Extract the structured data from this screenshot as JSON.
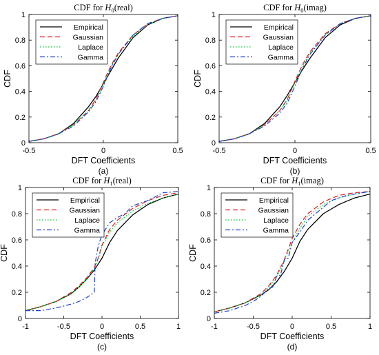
{
  "chart_data": [
    {
      "id": "a",
      "type": "line",
      "title": "CDF for H0(real)",
      "title_parts": {
        "prefix": "CDF for ",
        "symbol": "H",
        "subscript": "0",
        "suffix": "(real)"
      },
      "xlabel": "DFT Coefficients",
      "ylabel": "CDF",
      "caption": "(a)",
      "xlim": [
        -0.5,
        0.5
      ],
      "ylim": [
        0,
        1
      ],
      "xticks": [
        -0.5,
        0,
        0.5
      ],
      "xtick_labels": [
        "-0.5",
        "0",
        "0.5"
      ],
      "yticks": [
        0,
        0.2,
        0.4,
        0.6,
        0.8,
        1
      ],
      "ytick_labels": [
        "0",
        "0.2",
        "0.4",
        "0.6",
        "0.8",
        "1"
      ],
      "legend_position": "top-left",
      "series": [
        {
          "name": "Empirical",
          "color": "#000000",
          "dash": "solid",
          "x": [
            -0.5,
            -0.4,
            -0.3,
            -0.2,
            -0.1,
            -0.05,
            0,
            0.05,
            0.1,
            0.2,
            0.3,
            0.4,
            0.5
          ],
          "y": [
            0.01,
            0.03,
            0.07,
            0.15,
            0.28,
            0.36,
            0.46,
            0.56,
            0.66,
            0.82,
            0.92,
            0.97,
            0.99
          ]
        },
        {
          "name": "Gaussian",
          "color": "#e31a1c",
          "dash": "dash",
          "x": [
            -0.5,
            -0.4,
            -0.3,
            -0.2,
            -0.1,
            -0.05,
            0,
            0.05,
            0.1,
            0.2,
            0.3,
            0.4,
            0.5
          ],
          "y": [
            0.01,
            0.03,
            0.07,
            0.14,
            0.25,
            0.34,
            0.47,
            0.6,
            0.7,
            0.84,
            0.93,
            0.97,
            0.99
          ]
        },
        {
          "name": "Laplace",
          "color": "#00cc33",
          "dash": "dot",
          "x": [
            -0.5,
            -0.4,
            -0.3,
            -0.2,
            -0.1,
            -0.05,
            0,
            0.05,
            0.1,
            0.2,
            0.3,
            0.4,
            0.5
          ],
          "y": [
            0.01,
            0.03,
            0.07,
            0.14,
            0.25,
            0.33,
            0.46,
            0.59,
            0.69,
            0.83,
            0.92,
            0.97,
            0.99
          ]
        },
        {
          "name": "Gamma",
          "color": "#1f3fd6",
          "dash": "dashdot",
          "x": [
            -0.5,
            -0.4,
            -0.3,
            -0.2,
            -0.1,
            -0.05,
            0,
            0.05,
            0.1,
            0.2,
            0.3,
            0.4,
            0.5
          ],
          "y": [
            0.01,
            0.03,
            0.07,
            0.13,
            0.24,
            0.32,
            0.44,
            0.58,
            0.69,
            0.84,
            0.93,
            0.97,
            0.99
          ]
        }
      ]
    },
    {
      "id": "b",
      "type": "line",
      "title": "CDF for H0(imag)",
      "title_parts": {
        "prefix": "CDF for ",
        "symbol": "H",
        "subscript": "0",
        "suffix": "(imag)"
      },
      "xlabel": "DFT Coefficients",
      "ylabel": "CDF",
      "caption": "(b)",
      "xlim": [
        -0.5,
        0.5
      ],
      "ylim": [
        0,
        1
      ],
      "xticks": [
        -0.5,
        0,
        0.5
      ],
      "xtick_labels": [
        "-0.5",
        "0",
        "0.5"
      ],
      "yticks": [
        0,
        0.2,
        0.4,
        0.6,
        0.8,
        1
      ],
      "ytick_labels": [
        "0",
        "0.2",
        "0.4",
        "0.6",
        "0.8",
        "1"
      ],
      "legend_position": "top-left",
      "series": [
        {
          "name": "Empirical",
          "color": "#000000",
          "dash": "solid",
          "x": [
            -0.5,
            -0.4,
            -0.3,
            -0.2,
            -0.1,
            -0.05,
            0,
            0.05,
            0.1,
            0.2,
            0.3,
            0.4,
            0.5
          ],
          "y": [
            0.01,
            0.03,
            0.07,
            0.15,
            0.28,
            0.37,
            0.47,
            0.57,
            0.66,
            0.82,
            0.92,
            0.97,
            0.99
          ]
        },
        {
          "name": "Gaussian",
          "color": "#e31a1c",
          "dash": "dash",
          "x": [
            -0.5,
            -0.4,
            -0.3,
            -0.2,
            -0.1,
            -0.05,
            0,
            0.05,
            0.1,
            0.2,
            0.3,
            0.4,
            0.5
          ],
          "y": [
            0.01,
            0.03,
            0.07,
            0.14,
            0.25,
            0.34,
            0.48,
            0.61,
            0.71,
            0.85,
            0.93,
            0.97,
            0.99
          ]
        },
        {
          "name": "Laplace",
          "color": "#00cc33",
          "dash": "dot",
          "x": [
            -0.5,
            -0.4,
            -0.3,
            -0.2,
            -0.1,
            -0.05,
            0,
            0.05,
            0.1,
            0.2,
            0.3,
            0.4,
            0.5
          ],
          "y": [
            0.01,
            0.03,
            0.07,
            0.14,
            0.25,
            0.33,
            0.47,
            0.6,
            0.7,
            0.84,
            0.93,
            0.97,
            0.99
          ]
        },
        {
          "name": "Gamma",
          "color": "#1f3fd6",
          "dash": "dashdot",
          "x": [
            -0.5,
            -0.4,
            -0.3,
            -0.2,
            -0.1,
            -0.05,
            0,
            0.05,
            0.1,
            0.2,
            0.3,
            0.4,
            0.5
          ],
          "y": [
            0.01,
            0.03,
            0.07,
            0.13,
            0.23,
            0.31,
            0.44,
            0.58,
            0.69,
            0.84,
            0.93,
            0.97,
            0.99
          ]
        }
      ]
    },
    {
      "id": "c",
      "type": "line",
      "title": "CDF for H1(real)",
      "title_parts": {
        "prefix": "CDF for ",
        "symbol": "H",
        "subscript": "1",
        "suffix": "(real)"
      },
      "xlabel": "DFT Coefficients",
      "ylabel": "CDF",
      "caption": "(c)",
      "xlim": [
        -1,
        1
      ],
      "ylim": [
        0,
        1
      ],
      "xticks": [
        -1,
        -0.5,
        0,
        0.5,
        1
      ],
      "xtick_labels": [
        "-1",
        "-0.5",
        "0",
        "0.5",
        "1"
      ],
      "yticks": [
        0,
        0.2,
        0.4,
        0.6,
        0.8,
        1
      ],
      "ytick_labels": [
        "0",
        "0.2",
        "0.4",
        "0.6",
        "0.8",
        "1"
      ],
      "legend_position": "top-left",
      "series": [
        {
          "name": "Empirical",
          "color": "#000000",
          "dash": "solid",
          "x": [
            -1,
            -0.8,
            -0.6,
            -0.4,
            -0.3,
            -0.2,
            -0.1,
            0,
            0.1,
            0.2,
            0.4,
            0.6,
            0.8,
            1
          ],
          "y": [
            0.06,
            0.09,
            0.13,
            0.19,
            0.24,
            0.3,
            0.37,
            0.46,
            0.58,
            0.67,
            0.79,
            0.87,
            0.92,
            0.95
          ]
        },
        {
          "name": "Gaussian",
          "color": "#e31a1c",
          "dash": "dash",
          "x": [
            -1,
            -0.8,
            -0.6,
            -0.4,
            -0.3,
            -0.2,
            -0.1,
            -0.05,
            0,
            0.1,
            0.2,
            0.4,
            0.6,
            0.8,
            1
          ],
          "y": [
            0.06,
            0.09,
            0.13,
            0.2,
            0.25,
            0.31,
            0.39,
            0.46,
            0.56,
            0.68,
            0.75,
            0.84,
            0.9,
            0.94,
            0.96
          ]
        },
        {
          "name": "Laplace",
          "color": "#00cc33",
          "dash": "dot",
          "x": [
            -1,
            -0.8,
            -0.6,
            -0.4,
            -0.3,
            -0.2,
            -0.1,
            -0.05,
            0,
            0.1,
            0.2,
            0.4,
            0.6,
            0.8,
            1
          ],
          "y": [
            0.06,
            0.09,
            0.13,
            0.19,
            0.24,
            0.3,
            0.38,
            0.45,
            0.55,
            0.66,
            0.73,
            0.82,
            0.88,
            0.92,
            0.95
          ]
        },
        {
          "name": "Gamma",
          "color": "#1f3fd6",
          "dash": "dashdot",
          "x": [
            -1,
            -0.8,
            -0.6,
            -0.4,
            -0.3,
            -0.2,
            -0.15,
            -0.1,
            -0.09,
            -0.05,
            0,
            0.1,
            0.2,
            0.3,
            0.4,
            0.6,
            0.8,
            1
          ],
          "y": [
            0.06,
            0.06,
            0.08,
            0.11,
            0.13,
            0.16,
            0.18,
            0.2,
            0.42,
            0.55,
            0.64,
            0.73,
            0.77,
            0.8,
            0.86,
            0.9,
            0.96,
            0.97
          ]
        }
      ]
    },
    {
      "id": "d",
      "type": "line",
      "title": "CDF for H1(imag)",
      "title_parts": {
        "prefix": "CDF for ",
        "symbol": "H",
        "subscript": "1",
        "suffix": "(imag)"
      },
      "xlabel": "DFT Coefficients",
      "ylabel": "CDF",
      "caption": "(d)",
      "xlim": [
        -1,
        1
      ],
      "ylim": [
        0,
        1
      ],
      "xticks": [
        -1,
        -0.5,
        0,
        0.5,
        1
      ],
      "xtick_labels": [
        "-1",
        "-0.5",
        "0",
        "0.5",
        "1"
      ],
      "yticks": [
        0,
        0.2,
        0.4,
        0.6,
        0.8,
        1
      ],
      "ytick_labels": [
        "0",
        "0.2",
        "0.4",
        "0.6",
        "0.8",
        "1"
      ],
      "legend_position": "top-left",
      "series": [
        {
          "name": "Empirical",
          "color": "#000000",
          "dash": "solid",
          "x": [
            -1,
            -0.8,
            -0.6,
            -0.4,
            -0.3,
            -0.2,
            -0.1,
            0,
            0.1,
            0.2,
            0.4,
            0.6,
            0.8,
            1
          ],
          "y": [
            0.05,
            0.08,
            0.12,
            0.18,
            0.22,
            0.28,
            0.36,
            0.46,
            0.59,
            0.68,
            0.8,
            0.87,
            0.92,
            0.95
          ]
        },
        {
          "name": "Gaussian",
          "color": "#e31a1c",
          "dash": "dash",
          "x": [
            -1,
            -0.8,
            -0.6,
            -0.4,
            -0.3,
            -0.2,
            -0.1,
            0,
            0.1,
            0.2,
            0.4,
            0.6,
            0.8,
            1
          ],
          "y": [
            0.05,
            0.08,
            0.12,
            0.19,
            0.25,
            0.33,
            0.45,
            0.61,
            0.72,
            0.8,
            0.89,
            0.94,
            0.96,
            0.97
          ]
        },
        {
          "name": "Laplace",
          "color": "#00cc33",
          "dash": "dot",
          "x": [
            -1,
            -0.8,
            -0.6,
            -0.4,
            -0.3,
            -0.2,
            -0.1,
            0,
            0.1,
            0.2,
            0.4,
            0.6,
            0.8,
            1
          ],
          "y": [
            0.05,
            0.08,
            0.12,
            0.18,
            0.24,
            0.32,
            0.43,
            0.58,
            0.69,
            0.78,
            0.87,
            0.92,
            0.95,
            0.97
          ]
        },
        {
          "name": "Gamma",
          "color": "#1f3fd6",
          "dash": "dashdot",
          "x": [
            -1,
            -0.8,
            -0.6,
            -0.5,
            -0.4,
            -0.3,
            -0.25,
            -0.2,
            -0.15,
            -0.1,
            -0.05,
            0,
            0.1,
            0.2,
            0.3,
            0.5,
            0.7,
            0.9,
            1
          ],
          "y": [
            0.04,
            0.06,
            0.1,
            0.13,
            0.17,
            0.23,
            0.24,
            0.32,
            0.33,
            0.45,
            0.46,
            0.58,
            0.66,
            0.75,
            0.8,
            0.9,
            0.94,
            0.96,
            0.97
          ]
        }
      ]
    }
  ]
}
